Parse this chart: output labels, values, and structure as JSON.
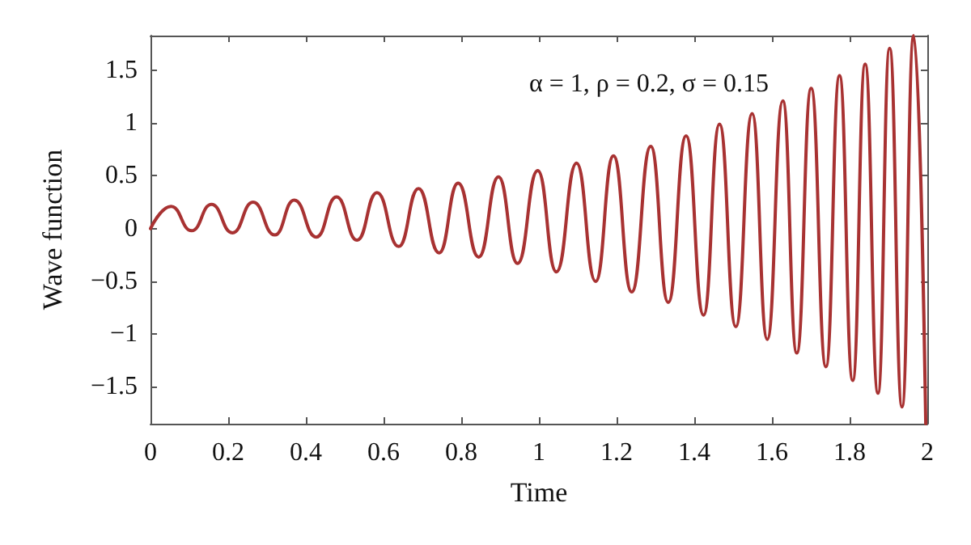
{
  "chart_data": {
    "type": "line",
    "xlabel": "Time",
    "ylabel": "Wave function",
    "annotations": [
      "α = 1, ρ = 0.2, σ = 0.15"
    ],
    "xlim": [
      0,
      2
    ],
    "xticks": [
      0,
      0.2,
      0.4,
      0.6,
      0.8,
      1,
      1.2,
      1.4,
      1.6,
      1.8,
      2
    ],
    "ylim": [
      -1.85,
      1.83
    ],
    "yticks": [
      {
        "value": -1.5,
        "label": "−1.5"
      },
      {
        "value": -1,
        "label": "−1"
      },
      {
        "value": -0.5,
        "label": "−0.5"
      },
      0,
      0.5,
      1,
      1.5
    ],
    "grid": false,
    "marker": "none",
    "line_style": "solid",
    "series": [
      {
        "color": "#a83232",
        "x": [
          0,
          0.053,
          0.106,
          0.157,
          0.211,
          0.264,
          0.32,
          0.37,
          0.427,
          0.479,
          0.532,
          0.583,
          0.639,
          0.69,
          0.743,
          0.792,
          0.845,
          0.896,
          0.945,
          0.997,
          1.045,
          1.097,
          1.146,
          1.192,
          1.239,
          1.288,
          1.333,
          1.379,
          1.424,
          1.465,
          1.507,
          1.549,
          1.588,
          1.628,
          1.664,
          1.701,
          1.739,
          1.774,
          1.808,
          1.84,
          1.873,
          1.903,
          1.935,
          1.965,
          1.996
        ],
        "values": [
          0,
          0.21,
          -0.02,
          0.23,
          -0.04,
          0.25,
          -0.06,
          0.27,
          -0.08,
          0.3,
          -0.11,
          0.34,
          -0.17,
          0.38,
          -0.23,
          0.43,
          -0.27,
          0.49,
          -0.33,
          0.55,
          -0.41,
          0.62,
          -0.5,
          0.69,
          -0.6,
          0.78,
          -0.7,
          0.88,
          -0.82,
          0.99,
          -0.93,
          1.09,
          -1.05,
          1.21,
          -1.18,
          1.33,
          -1.31,
          1.45,
          -1.44,
          1.56,
          -1.56,
          1.71,
          -1.69,
          1.83,
          -1.85
        ]
      }
    ]
  }
}
